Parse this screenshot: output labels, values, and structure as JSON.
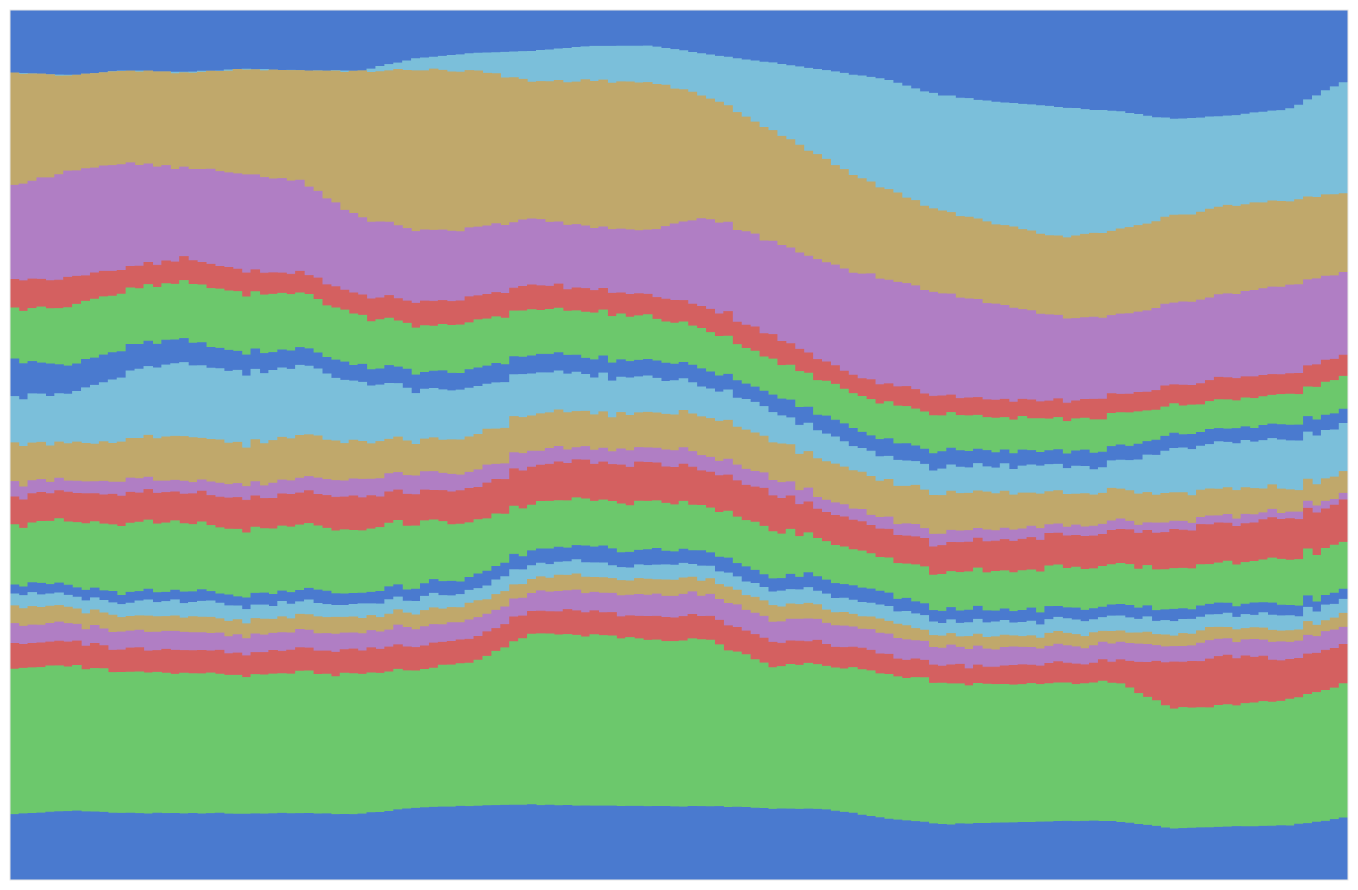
{
  "chart_data": {
    "type": "area",
    "stacking": "stream-step",
    "title": "",
    "xlabel": "",
    "ylabel": "",
    "grid": false,
    "legend": "none",
    "palette": [
      "#4a7acf",
      "#c0a86b",
      "#b07ec4",
      "#d46060",
      "#6cc86c",
      "#7bbfda"
    ],
    "n_points": 24,
    "xlim": [
      0,
      23
    ],
    "ylim": [
      0,
      100
    ],
    "series": [
      {
        "color": "#4a7acf",
        "values": [
          7.0,
          7.2,
          6.9,
          7.1,
          6.8,
          6.9,
          7.0,
          5.5,
          4.9,
          4.7,
          4.2,
          4.2,
          5.2,
          6.0,
          6.9,
          7.9,
          10.0,
          11.0,
          11.6,
          11.9,
          13.0,
          12.3,
          11.3,
          7.7
        ]
      },
      {
        "color": "#7bbfda",
        "values": [
          0.0,
          0.0,
          0.0,
          0.0,
          0.0,
          0.0,
          0.0,
          1.3,
          2.0,
          3.5,
          4.0,
          4.3,
          4.9,
          7.5,
          10.2,
          12.5,
          13.5,
          14.5,
          15.5,
          14.0,
          11.6,
          10.5,
          10.5,
          12.5
        ]
      },
      {
        "color": "#c0a86b",
        "values": [
          12.9,
          10.5,
          10.5,
          10.8,
          12.0,
          12.7,
          16.7,
          18.2,
          17.9,
          15.6,
          17.0,
          17.2,
          14.1,
          12.8,
          11.8,
          10.4,
          9.5,
          9.6,
          9.6,
          10.0,
          10.5,
          10.3,
          9.7,
          8.7
        ]
      },
      {
        "color": "#b07ec4",
        "values": [
          10.5,
          11.7,
          12.0,
          10.4,
          11.2,
          10.4,
          8.9,
          8.2,
          7.8,
          7.5,
          7.1,
          7.6,
          10.5,
          10.7,
          11.4,
          12.1,
          12.0,
          11.4,
          10.1,
          9.3,
          9.7,
          9.7,
          10.1,
          8.9
        ]
      },
      {
        "color": "#d46060",
        "values": [
          3.3,
          3.2,
          2.6,
          2.6,
          2.6,
          2.3,
          2.4,
          2.7,
          2.9,
          2.7,
          2.6,
          2.5,
          2.7,
          2.8,
          2.2,
          2.2,
          2.2,
          2.0,
          2.2,
          2.3,
          2.4,
          2.5,
          2.4,
          2.4
        ]
      },
      {
        "color": "#6cc86c",
        "values": [
          5.8,
          6.4,
          6.4,
          6.5,
          6.8,
          6.2,
          5.7,
          5.2,
          5.4,
          5.2,
          5.3,
          5.1,
          4.5,
          4.0,
          4.0,
          4.2,
          4.3,
          4.0,
          3.9,
          3.9,
          3.5,
          3.3,
          3.5,
          3.6
        ]
      },
      {
        "color": "#4a7acf",
        "values": [
          4.1,
          3.2,
          2.9,
          2.6,
          2.3,
          2.0,
          1.9,
          2.0,
          2.0,
          2.1,
          2.0,
          2.0,
          2.0,
          1.9,
          1.9,
          1.9,
          1.9,
          1.8,
          1.8,
          1.8,
          1.7,
          1.7,
          1.7,
          1.7
        ]
      },
      {
        "color": "#7bbfda",
        "values": [
          5.3,
          5.4,
          7.6,
          8.3,
          8.2,
          8.0,
          6.8,
          5.9,
          5.4,
          4.7,
          4.4,
          4.1,
          3.6,
          3.4,
          3.0,
          2.8,
          3.0,
          3.2,
          3.2,
          3.1,
          5.3,
          5.4,
          5.5,
          5.3
        ]
      },
      {
        "color": "#c0a86b",
        "values": [
          4.4,
          4.1,
          4.6,
          5.0,
          4.6,
          4.9,
          4.3,
          3.7,
          3.9,
          4.2,
          4.1,
          4.1,
          4.7,
          4.3,
          4.3,
          4.3,
          4.6,
          4.3,
          3.9,
          3.7,
          3.3,
          3.2,
          2.6,
          2.4
        ]
      },
      {
        "color": "#b07ec4",
        "values": [
          1.6,
          1.3,
          1.5,
          1.4,
          1.6,
          1.6,
          2.0,
          2.0,
          1.9,
          1.8,
          1.5,
          1.9,
          1.8,
          1.8,
          1.4,
          1.3,
          1.3,
          1.3,
          1.2,
          1.1,
          1.0,
          1.0,
          0.8,
          0.8
        ]
      },
      {
        "color": "#d46060",
        "values": [
          3.0,
          3.2,
          3.4,
          3.4,
          3.6,
          3.6,
          3.8,
          3.4,
          3.8,
          4.3,
          4.4,
          4.4,
          4.2,
          4.2,
          3.3,
          3.4,
          3.4,
          3.6,
          3.8,
          4.0,
          4.5,
          4.6,
          4.6,
          4.6
        ]
      },
      {
        "color": "#6cc86c",
        "values": [
          6.6,
          7.0,
          7.8,
          7.8,
          7.6,
          7.3,
          7.2,
          7.1,
          6.2,
          5.3,
          5.4,
          5.7,
          5.3,
          5.4,
          4.4,
          4.0,
          4.2,
          4.6,
          4.8,
          4.8,
          4.7,
          4.9,
          5.1,
          5.3
        ]
      },
      {
        "color": "#4a7acf",
        "values": [
          1.0,
          1.2,
          1.2,
          1.2,
          1.2,
          1.4,
          1.3,
          1.4,
          1.6,
          1.6,
          1.8,
          1.8,
          1.6,
          1.6,
          1.6,
          1.5,
          1.5,
          1.4,
          1.4,
          1.3,
          1.3,
          1.3,
          1.2,
          1.2
        ]
      },
      {
        "color": "#7bbfda",
        "values": [
          1.4,
          1.4,
          1.6,
          1.8,
          1.7,
          1.6,
          1.5,
          1.5,
          1.5,
          1.6,
          1.6,
          1.6,
          1.6,
          1.7,
          1.7,
          1.6,
          1.6,
          1.6,
          1.7,
          1.7,
          1.6,
          1.6,
          1.6,
          1.7
        ]
      },
      {
        "color": "#c0a86b",
        "values": [
          2.0,
          1.8,
          1.8,
          1.8,
          1.7,
          1.8,
          1.8,
          1.8,
          1.8,
          1.7,
          1.8,
          1.8,
          1.8,
          1.8,
          1.6,
          1.6,
          1.4,
          1.4,
          1.4,
          1.4,
          1.4,
          1.4,
          1.4,
          1.4
        ]
      },
      {
        "color": "#b07ec4",
        "values": [
          2.2,
          2.0,
          2.0,
          2.0,
          2.0,
          2.0,
          2.0,
          2.1,
          2.1,
          2.2,
          2.3,
          2.5,
          2.5,
          2.5,
          2.4,
          2.2,
          2.2,
          2.1,
          2.1,
          2.0,
          2.0,
          2.0,
          2.0,
          2.0
        ]
      },
      {
        "color": "#d46060",
        "values": [
          2.7,
          2.7,
          2.6,
          2.6,
          2.6,
          2.6,
          2.8,
          2.8,
          2.7,
          2.7,
          2.7,
          2.7,
          2.8,
          2.8,
          2.6,
          2.2,
          2.1,
          2.2,
          2.4,
          2.4,
          5.5,
          5.7,
          4.6,
          4.4
        ]
      },
      {
        "color": "#6cc86c",
        "values": [
          16.2,
          15.9,
          16.0,
          16.0,
          15.9,
          16.1,
          16.0,
          15.7,
          16.3,
          19.6,
          19.8,
          19.4,
          19.4,
          16.5,
          16.6,
          16.6,
          16.6,
          16.5,
          16.4,
          16.4,
          14.2,
          14.1,
          14.4,
          14.8
        ]
      },
      {
        "color": "#4a7acf",
        "values": [
          7.3,
          7.6,
          7.6,
          7.6,
          7.6,
          7.6,
          7.5,
          8.2,
          8.4,
          8.6,
          8.6,
          8.6,
          8.6,
          8.2,
          8.1,
          7.1,
          6.5,
          6.8,
          7.0,
          6.9,
          6.1,
          6.2,
          6.2,
          6.9
        ]
      }
    ]
  }
}
